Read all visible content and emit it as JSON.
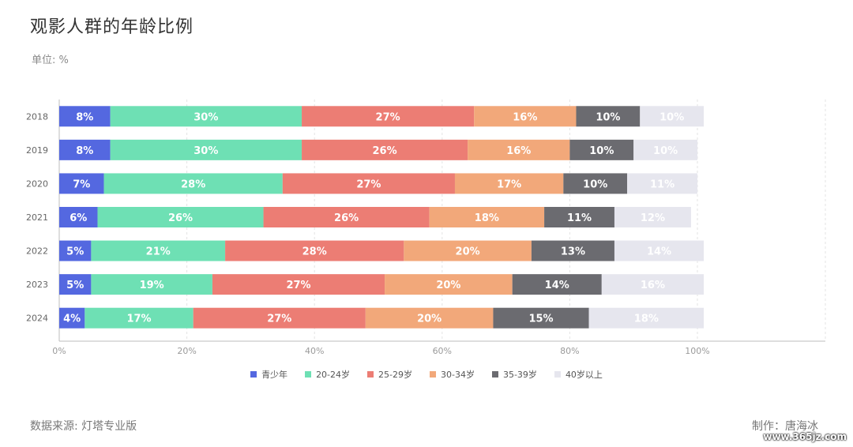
{
  "title": "观影人群的年龄比例",
  "unit": "单位: %",
  "source": "数据来源: 灯塔专业版",
  "author": "制作：唐海冰",
  "watermark": "www.365jz.com",
  "chart_data": {
    "type": "bar",
    "orientation": "horizontal",
    "stacked": true,
    "categories": [
      "2018",
      "2019",
      "2020",
      "2021",
      "2022",
      "2023",
      "2024"
    ],
    "xlim": [
      0,
      100
    ],
    "x_ticks": [
      "0%",
      "20%",
      "40%",
      "60%",
      "80%",
      "100%"
    ],
    "grid": true,
    "legend_position": "bottom",
    "series": [
      {
        "name": "青少年",
        "color": "#5468e0",
        "values": [
          8,
          8,
          7,
          6,
          5,
          5,
          4
        ]
      },
      {
        "name": "20-24岁",
        "color": "#6ee0b4",
        "values": [
          30,
          30,
          28,
          26,
          21,
          19,
          17
        ]
      },
      {
        "name": "25-29岁",
        "color": "#ec7d74",
        "values": [
          27,
          26,
          27,
          26,
          28,
          27,
          27
        ]
      },
      {
        "name": "30-34岁",
        "color": "#f2a87a",
        "values": [
          16,
          16,
          17,
          18,
          20,
          20,
          20
        ]
      },
      {
        "name": "35-39岁",
        "color": "#6b6b70",
        "values": [
          10,
          10,
          10,
          11,
          13,
          14,
          15
        ]
      },
      {
        "name": "40岁以上",
        "color": "#e6e6ee",
        "values": [
          10,
          10,
          11,
          12,
          14,
          16,
          18
        ]
      }
    ],
    "label_suffix": "%"
  }
}
